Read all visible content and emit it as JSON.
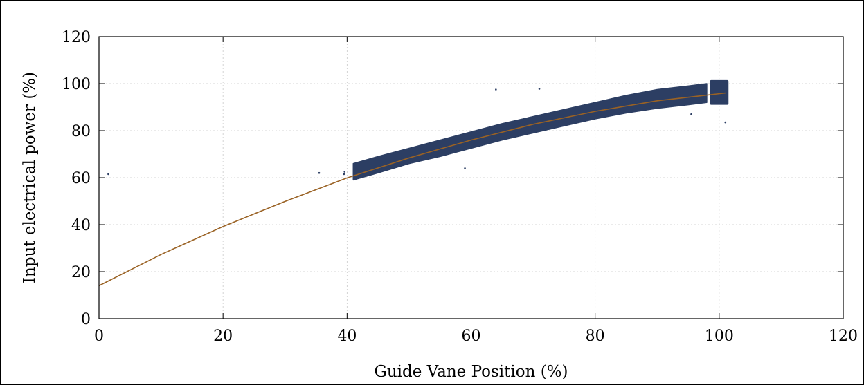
{
  "chart_data": {
    "type": "scatter",
    "title": "",
    "xlabel": "Guide Vane Position (%)",
    "ylabel": "Input electrical power (%)",
    "xlim": [
      0,
      120
    ],
    "ylim": [
      0,
      120
    ],
    "xticks": [
      "0",
      "20",
      "40",
      "60",
      "80",
      "100",
      "120"
    ],
    "yticks": [
      "0",
      "20",
      "40",
      "60",
      "80",
      "100",
      "120"
    ],
    "grid": true,
    "legend": "none",
    "colors": {
      "scatter": "#2c3e63",
      "fit": "#9a6224",
      "grid": "#c8c8c8"
    },
    "scatter_band": {
      "x": [
        41,
        45,
        50,
        55,
        60,
        65,
        70,
        75,
        80,
        85,
        90,
        95,
        98
      ],
      "y_min": [
        59,
        62,
        66,
        69,
        72.5,
        76,
        79,
        82,
        85,
        87.5,
        89.5,
        91,
        92
      ],
      "y_max": [
        66,
        69,
        72.5,
        76,
        79.5,
        83,
        86,
        89,
        92,
        95,
        97.5,
        99,
        100
      ]
    },
    "scatter_cluster": {
      "x": [
        98.5,
        101.5
      ],
      "y": [
        91,
        101.5
      ]
    },
    "outliers": [
      {
        "x": 1.5,
        "y": 61.5
      },
      {
        "x": 35.5,
        "y": 62
      },
      {
        "x": 39.5,
        "y": 61.5
      },
      {
        "x": 39.6,
        "y": 62.5
      },
      {
        "x": 59,
        "y": 64
      },
      {
        "x": 64,
        "y": 97.5
      },
      {
        "x": 71,
        "y": 97.8
      },
      {
        "x": 95.5,
        "y": 87
      },
      {
        "x": 101,
        "y": 83.5
      }
    ],
    "fit_curve": {
      "x": [
        0,
        10,
        20,
        30,
        40,
        50,
        60,
        70,
        80,
        90,
        100,
        101
      ],
      "y": [
        14,
        27.3,
        39.2,
        49.9,
        59.9,
        68.4,
        76.0,
        82.7,
        88.2,
        92.7,
        95.7,
        96.0
      ]
    }
  }
}
